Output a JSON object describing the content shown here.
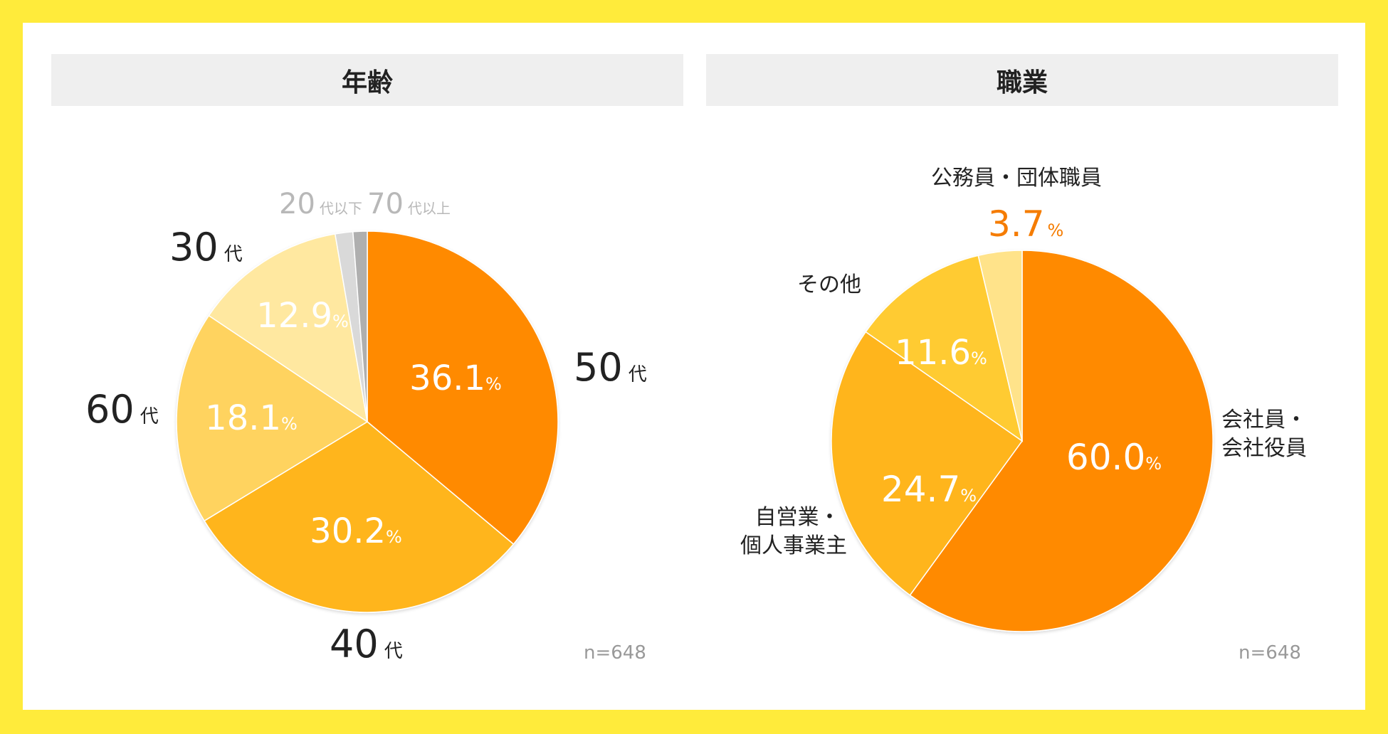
{
  "page": {
    "background": "#FFEB3B",
    "card_background": "#FFFFFF"
  },
  "chart_data": [
    {
      "type": "pie",
      "title": "年齢",
      "sample_size": "n=648",
      "start_angle_deg": 0,
      "direction": "clockwise",
      "slices": [
        {
          "label": "50",
          "unit": "代",
          "value": 36.1,
          "value_text": "36.1",
          "pct": "%",
          "color": "#FF8A00",
          "inside": true
        },
        {
          "label": "40",
          "unit": "代",
          "value": 30.2,
          "value_text": "30.2",
          "pct": "%",
          "color": "#FFB51F",
          "inside": true
        },
        {
          "label": "60",
          "unit": "代",
          "value": 18.1,
          "value_text": "18.1",
          "pct": "%",
          "color": "#FFD35E",
          "inside": true
        },
        {
          "label": "30",
          "unit": "代",
          "value": 12.9,
          "value_text": "12.9",
          "pct": "%",
          "color": "#FFE8A0",
          "inside": true
        },
        {
          "label": "20",
          "unit": "代以下",
          "value": 1.5,
          "value_text": "",
          "pct": "",
          "color": "#D9D9D9",
          "inside": false
        },
        {
          "label": "70",
          "unit": "代以上",
          "value": 1.2,
          "value_text": "",
          "pct": "",
          "color": "#AFAFAF",
          "inside": false
        }
      ]
    },
    {
      "type": "pie",
      "title": "職業",
      "sample_size": "n=648",
      "start_angle_deg": 0,
      "direction": "clockwise",
      "slices": [
        {
          "label": "会社員・\n会社役員",
          "value": 60.0,
          "value_text": "60.0",
          "pct": "%",
          "color": "#FF8A00",
          "inside": true
        },
        {
          "label": "自営業・\n個人事業主",
          "value": 24.7,
          "value_text": "24.7",
          "pct": "%",
          "color": "#FFB51F",
          "inside": true
        },
        {
          "label": "その他",
          "value": 11.6,
          "value_text": "11.6",
          "pct": "%",
          "color": "#FFCB33",
          "inside": true
        },
        {
          "label": "公務員・団体職員",
          "value": 3.7,
          "value_text": "3.7",
          "pct": "%",
          "color": "#FFE38A",
          "inside": false,
          "callout_color": "#F57C00"
        }
      ]
    }
  ]
}
